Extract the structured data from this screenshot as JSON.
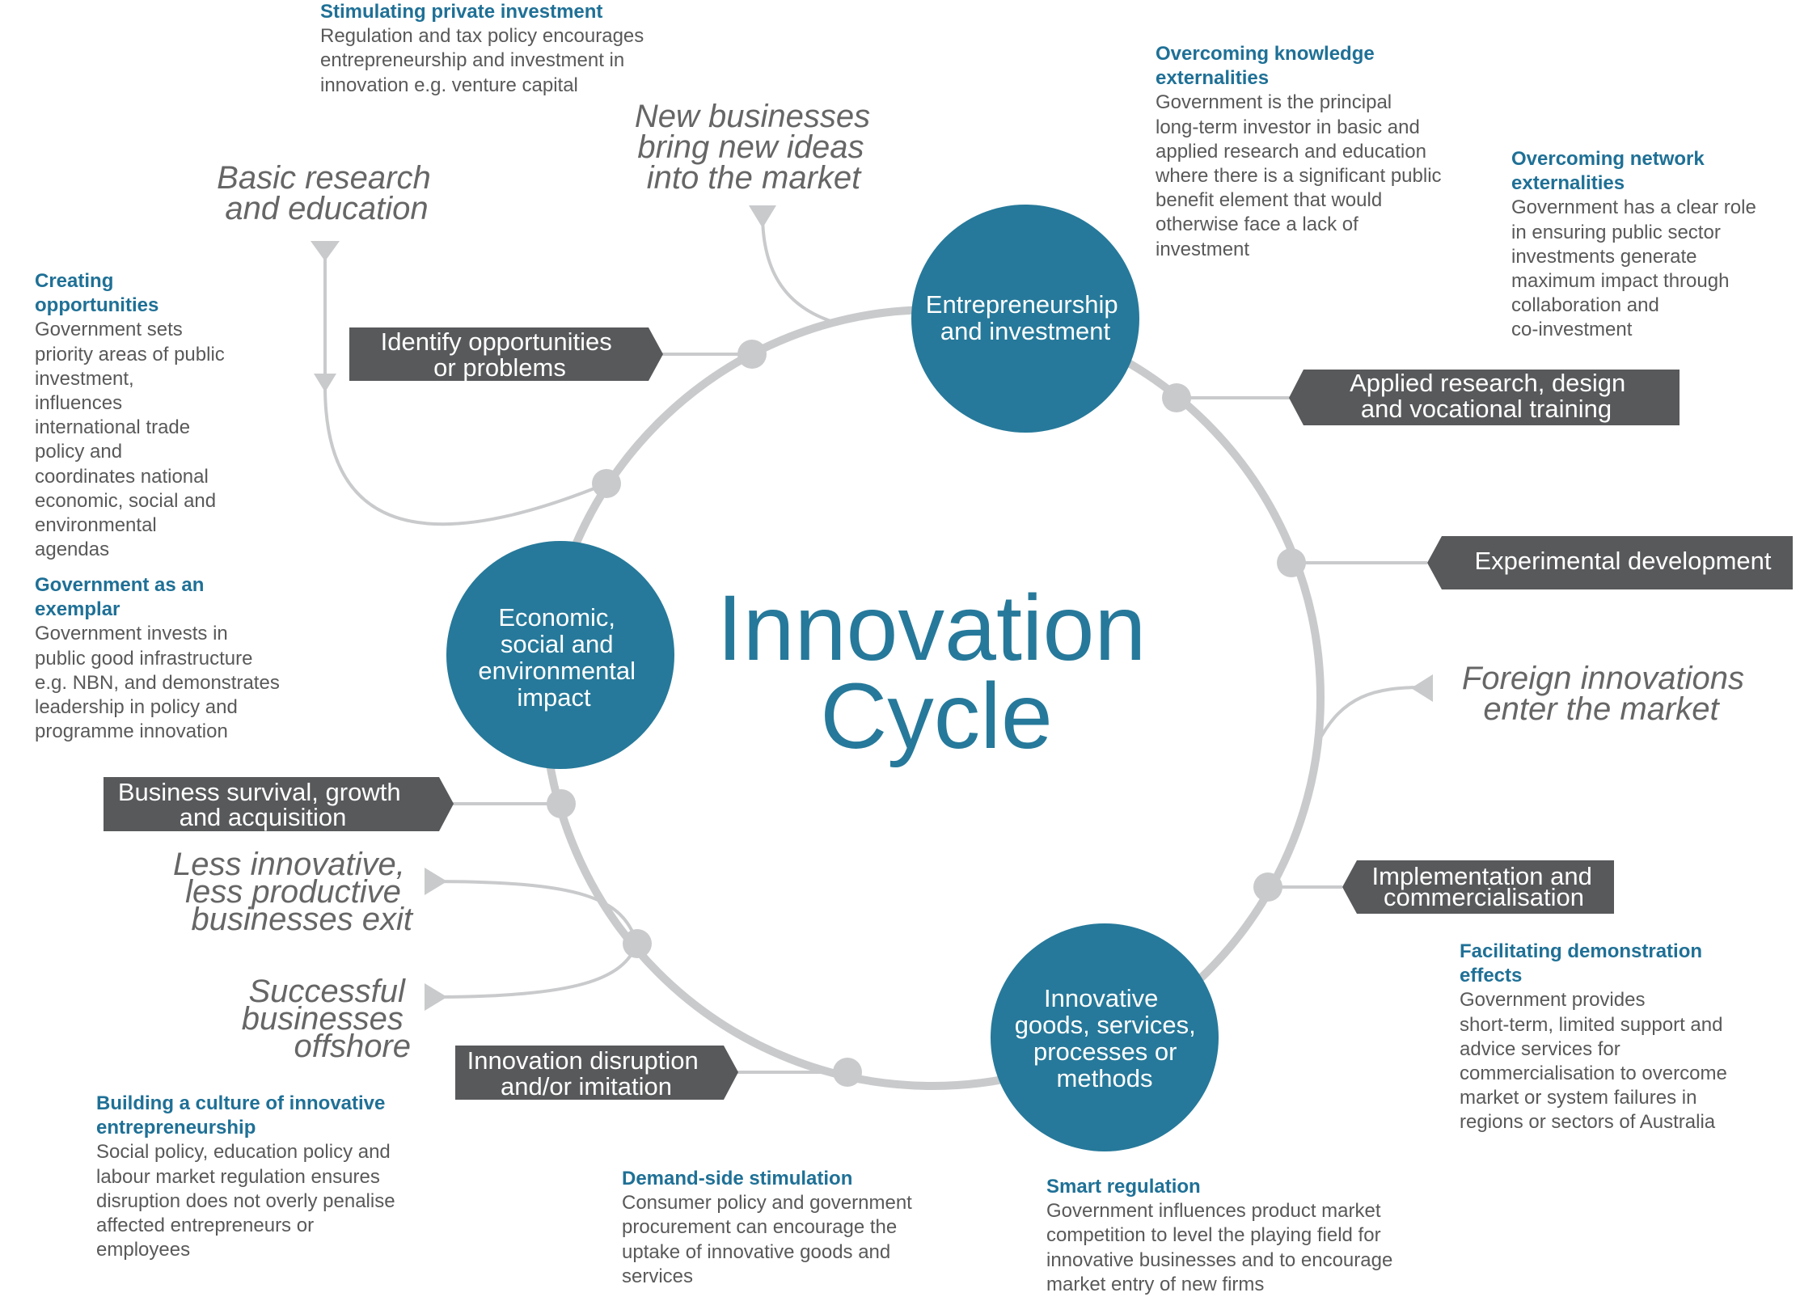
{
  "title": {
    "line1": "Innovation",
    "line2": "Cycle"
  },
  "colors": {
    "teal": "#26799a",
    "dark": "#58595b",
    "ring": "#c9cacc",
    "note_title": "#1f7096",
    "note_text": "#595959",
    "italic": "#666666"
  },
  "circles": {
    "entrepreneurship": [
      "Entrepreneurship",
      "and investment"
    ],
    "economic": [
      "Economic,",
      "social and",
      "environmental",
      "impact"
    ],
    "innovative": [
      "Innovative",
      "goods, services,",
      "processes or",
      "methods"
    ]
  },
  "boxes": {
    "identify": [
      "Identify opportunities",
      "or problems"
    ],
    "applied": [
      "Applied research, design",
      "and vocational training"
    ],
    "experimental": [
      "Experimental development"
    ],
    "implementation": [
      "Implementation and",
      "commercialisation"
    ],
    "disruption": [
      "Innovation disruption",
      "and/or imitation"
    ],
    "survival": [
      "Business survival, growth",
      "and acquisition"
    ]
  },
  "italics": {
    "basic": [
      "Basic research",
      "and education"
    ],
    "newbiz": [
      "New businesses",
      "bring new ideas",
      "into the market"
    ],
    "foreign": [
      "Foreign innovations",
      "enter the market"
    ],
    "exit": [
      "Less innovative,",
      "less productive",
      "businesses exit"
    ],
    "offshore": [
      "Successful",
      "businesses",
      "offshore"
    ]
  },
  "notes": {
    "stimulating": {
      "title": [
        "Stimulating private investment"
      ],
      "body": [
        "Regulation and tax policy encourages",
        "entrepreneurship and investment in",
        "innovation e.g. venture capital"
      ]
    },
    "knowledge": {
      "title": [
        "Overcoming knowledge",
        "externalities"
      ],
      "body": [
        "Government is the principal",
        "long-term investor in basic and",
        "applied research and education",
        "where there is a significant public",
        "benefit element that would",
        "otherwise face a lack of",
        "investment"
      ]
    },
    "network": {
      "title": [
        "Overcoming network",
        "externalities"
      ],
      "body": [
        "Government has a clear role",
        "in ensuring public sector",
        "investments generate",
        "maximum impact through",
        "collaboration and",
        "co-investment"
      ]
    },
    "creating": {
      "title": [
        "Creating",
        "opportunities"
      ],
      "body": [
        "Government sets",
        "priority areas of public",
        "investment,",
        "influences",
        "international trade",
        "policy and",
        "coordinates national",
        "economic, social and",
        "environmental",
        "agendas"
      ]
    },
    "exemplar": {
      "title": [
        "Government as an",
        "exemplar"
      ],
      "body": [
        "Government invests in",
        "public good infrastructure",
        "e.g. NBN, and demonstrates",
        "leadership in policy and",
        "programme innovation"
      ]
    },
    "demonstration": {
      "title": [
        "Facilitating demonstration",
        "effects"
      ],
      "body": [
        "Government provides",
        "short-term, limited support and",
        "advice services for",
        "commercialisation to overcome",
        "market or system failures in",
        "regions or sectors of Australia"
      ]
    },
    "culture": {
      "title": [
        "Building a culture of innovative",
        "entrepreneurship"
      ],
      "body": [
        "Social policy, education policy and",
        "labour market regulation ensures",
        "disruption does not overly penalise",
        "affected entrepreneurs or",
        "employees"
      ]
    },
    "demand": {
      "title": [
        "Demand-side stimulation"
      ],
      "body": [
        "Consumer policy and government",
        "procurement can encourage the",
        "uptake of innovative goods and",
        "services"
      ]
    },
    "smart": {
      "title": [
        "Smart regulation"
      ],
      "body": [
        "Government influences product market",
        "competition to level the playing field for",
        "innovative businesses and to encourage",
        "market entry of new firms"
      ]
    }
  }
}
